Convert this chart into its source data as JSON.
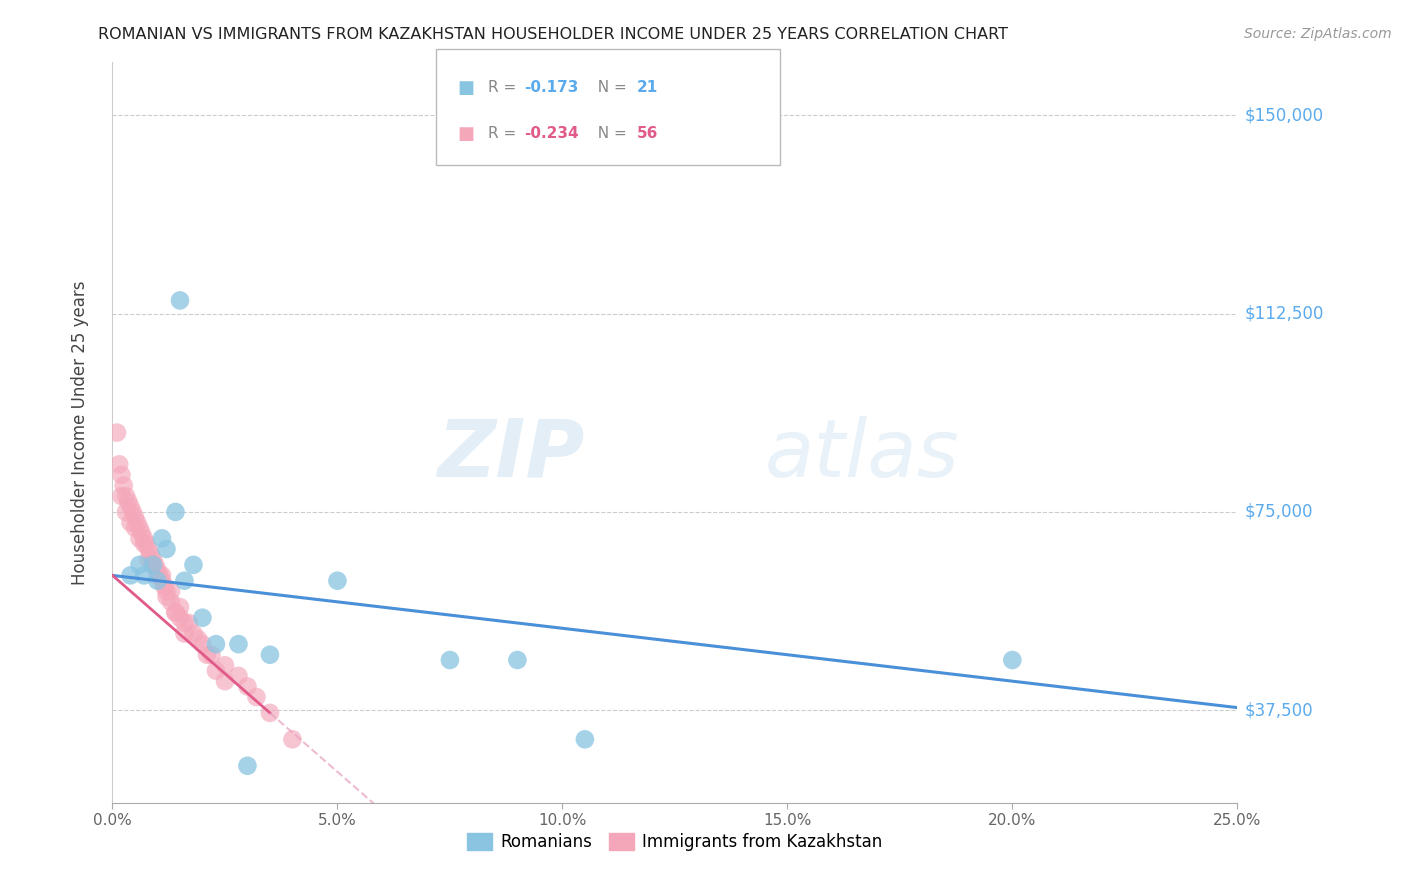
{
  "title": "ROMANIAN VS IMMIGRANTS FROM KAZAKHSTAN HOUSEHOLDER INCOME UNDER 25 YEARS CORRELATION CHART",
  "source": "Source: ZipAtlas.com",
  "ylabel": "Householder Income Under 25 years",
  "xlim": [
    0.0,
    25.0
  ],
  "ylim": [
    20000,
    160000
  ],
  "yticks": [
    37500,
    75000,
    112500,
    150000
  ],
  "ytick_labels": [
    "$37,500",
    "$75,000",
    "$112,500",
    "$150,000"
  ],
  "xticks": [
    0.0,
    5.0,
    10.0,
    15.0,
    20.0,
    25.0
  ],
  "xtick_labels": [
    "0.0%",
    "5.0%",
    "10.0%",
    "15.0%",
    "20.0%",
    "25.0%"
  ],
  "blue_color": "#89c4e1",
  "pink_color": "#f4a7b9",
  "blue_line_color": "#4a90d9",
  "pink_line_color": "#e05a8a",
  "pink_dash_color": "#e8a0c0",
  "legend_label_blue": "Romanians",
  "legend_label_pink": "Immigrants from Kazakhstan",
  "watermark_zip": "ZIP",
  "watermark_atlas": "atlas",
  "ytick_color": "#5aaaee",
  "grid_color": "#cccccc",
  "blue_x": [
    0.4,
    0.6,
    0.7,
    0.9,
    1.0,
    1.1,
    1.2,
    1.4,
    1.5,
    1.6,
    1.8,
    2.0,
    2.3,
    2.8,
    3.5,
    5.0,
    7.5,
    9.0,
    10.5,
    20.0,
    3.0
  ],
  "blue_y": [
    63000,
    65000,
    63000,
    65000,
    62000,
    70000,
    68000,
    75000,
    115000,
    62000,
    65000,
    55000,
    50000,
    50000,
    48000,
    62000,
    47000,
    47000,
    32000,
    47000,
    27000
  ],
  "pink_x": [
    0.1,
    0.15,
    0.2,
    0.25,
    0.3,
    0.35,
    0.4,
    0.45,
    0.5,
    0.55,
    0.6,
    0.65,
    0.7,
    0.75,
    0.8,
    0.85,
    0.9,
    0.95,
    1.0,
    1.05,
    1.1,
    1.15,
    1.2,
    1.3,
    1.4,
    1.5,
    1.6,
    1.8,
    2.0,
    2.2,
    2.5,
    2.8,
    3.0,
    3.2,
    0.3,
    0.5,
    0.7,
    0.9,
    1.1,
    1.3,
    1.5,
    1.7,
    1.9,
    2.1,
    2.3,
    2.5,
    0.2,
    0.4,
    0.6,
    0.8,
    1.0,
    1.2,
    1.4,
    1.6,
    3.5,
    4.0
  ],
  "pink_y": [
    90000,
    84000,
    82000,
    80000,
    78000,
    77000,
    76000,
    75000,
    74000,
    73000,
    72000,
    71000,
    70000,
    69000,
    68000,
    67000,
    66000,
    65000,
    64000,
    63000,
    62000,
    61000,
    60000,
    58000,
    56000,
    55000,
    54000,
    52000,
    50000,
    48000,
    46000,
    44000,
    42000,
    40000,
    75000,
    72000,
    69000,
    65000,
    63000,
    60000,
    57000,
    54000,
    51000,
    48000,
    45000,
    43000,
    78000,
    73000,
    70000,
    66000,
    63000,
    59000,
    56000,
    52000,
    37000,
    32000
  ]
}
